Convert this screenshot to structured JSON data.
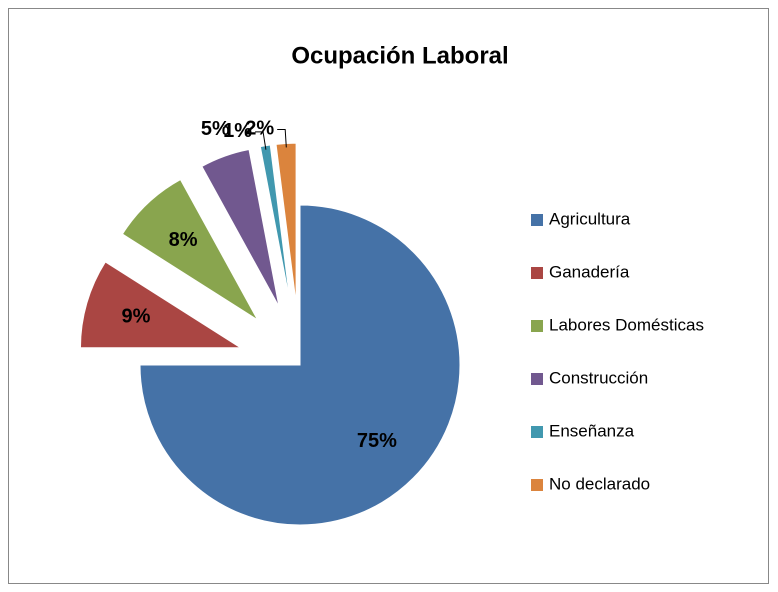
{
  "chart_data": {
    "type": "pie",
    "title": "Ocupación Laboral",
    "categories": [
      "Agricultura",
      "Ganadería",
      "Labores Domésticas",
      "Construcción",
      "Enseñanza",
      "No declarado"
    ],
    "values": [
      75,
      9,
      8,
      5,
      1,
      2
    ],
    "value_labels": [
      "75%",
      "9%",
      "8%",
      "5%",
      "1%",
      "2%"
    ],
    "colors": [
      "#4572a7",
      "#aa4643",
      "#89a54e",
      "#71588f",
      "#4198af",
      "#db843d"
    ],
    "legend": "right"
  }
}
